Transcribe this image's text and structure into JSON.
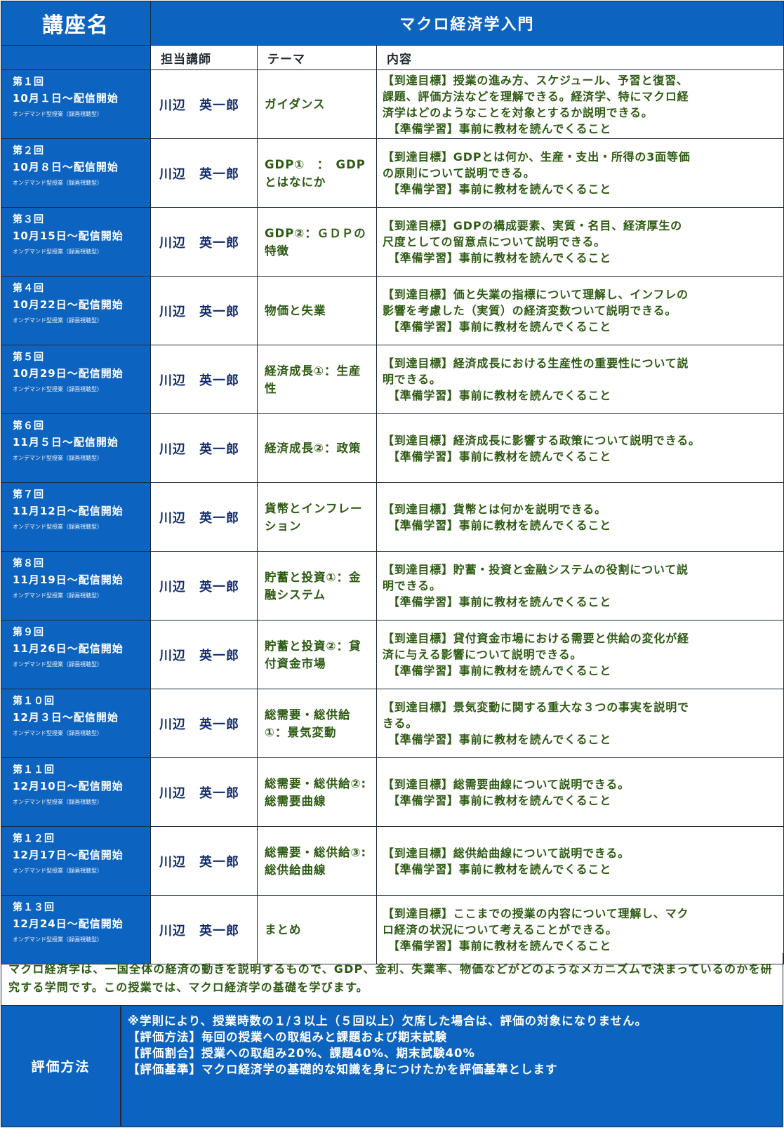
{
  "header": {
    "title_label": "講座名",
    "course_name": "マクロ経済学入門"
  },
  "columns": {
    "instructor": "担当講師",
    "theme": "テーマ",
    "content": "内容"
  },
  "sessions": [
    {
      "number": "第１回",
      "date": "10月１日～配信開始",
      "mode": "オンデマンド型授業（録画視聴型）",
      "instructor": "川辺　英一郎",
      "theme": "ガイダンス",
      "goal_lines": [
        "【到達目標】授業の進み方、スケジュール、予習と復習、",
        "課題、評価方法などを理解できる。経済学、特にマクロ経",
        "済学はどのようなことを対象とするか説明できる。"
      ],
      "prep": "【準備学習】事前に教材を読んでくること"
    },
    {
      "number": "第２回",
      "date": "10月８日～配信開始",
      "mode": "オンデマンド型授業（録画視聴型）",
      "instructor": "川辺　英一郎",
      "theme": "GDP①　：　GDPとはなにか",
      "goal_lines": [
        "【到達目標】GDPとは何か、生産・支出・所得の3面等価",
        "の原則について説明できる。"
      ],
      "prep": "【準備学習】事前に教材を読んでくること"
    },
    {
      "number": "第３回",
      "date": "10月15日～配信開始",
      "mode": "オンデマンド型授業（録画視聴型）",
      "instructor": "川辺　英一郎",
      "theme": "GDP②：ＧＤＰの特徴",
      "goal_lines": [
        "【到達目標】GDPの構成要素、実質・名目、経済厚生の",
        "尺度としての留意点について説明できる。"
      ],
      "prep": "【準備学習】事前に教材を読んでくること"
    },
    {
      "number": "第４回",
      "date": "10月22日～配信開始",
      "mode": "オンデマンド型授業（録画視聴型）",
      "instructor": "川辺　英一郎",
      "theme": "物価と失業",
      "goal_lines": [
        "【到達目標】価と失業の指標について理解し、インフレの",
        "影響を考慮した（実質）の経済変数ついて説明できる。"
      ],
      "prep": "【準備学習】事前に教材を読んでくること"
    },
    {
      "number": "第５回",
      "date": "10月29日～配信開始",
      "mode": "オンデマンド型授業（録画視聴型）",
      "instructor": "川辺　英一郎",
      "theme": "経済成長①：生産性",
      "goal_lines": [
        "【到達目標】経済成長における生産性の重要性について説",
        "明できる。"
      ],
      "prep": "【準備学習】事前に教材を読んでくること"
    },
    {
      "number": "第６回",
      "date": "11月５日～配信開始",
      "mode": "オンデマンド型授業（録画視聴型）",
      "instructor": "川辺　英一郎",
      "theme": "経済成長②：政策",
      "goal_lines": [
        "【到達目標】経済成長に影響する政策について説明できる。"
      ],
      "prep": "【準備学習】事前に教材を読んでくること"
    },
    {
      "number": "第７回",
      "date": "11月12日～配信開始",
      "mode": "オンデマンド型授業（録画視聴型）",
      "instructor": "川辺　英一郎",
      "theme": "貨幣とインフレーション",
      "goal_lines": [
        "【到達目標】貨幣とは何かを説明できる。"
      ],
      "prep": "【準備学習】事前に教材を読んでくること"
    },
    {
      "number": "第８回",
      "date": "11月19日～配信開始",
      "mode": "オンデマンド型授業（録画視聴型）",
      "instructor": "川辺　英一郎",
      "theme": "貯蓄と投資①：金融システム",
      "goal_lines": [
        "【到達目標】貯蓄・投資と金融システムの役割について説",
        "明できる。"
      ],
      "prep": "【準備学習】事前に教材を読んでくること"
    },
    {
      "number": "第９回",
      "date": "11月26日～配信開始",
      "mode": "オンデマンド型授業（録画視聴型）",
      "instructor": "川辺　英一郎",
      "theme": "貯蓄と投資②：貸付資金市場",
      "goal_lines": [
        "【到達目標】貸付資金市場における需要と供給の変化が経",
        "済に与える影響について説明できる。"
      ],
      "prep": "【準備学習】事前に教材を読んでくること"
    },
    {
      "number": "第１０回",
      "date": "12月３日～配信開始",
      "mode": "オンデマンド型授業（録画視聴型）",
      "instructor": "川辺　英一郎",
      "theme": "総需要・総供給①：景気変動",
      "goal_lines": [
        "【到達目標】景気変動に関する重大な３つの事実を説明で",
        "きる。"
      ],
      "prep": "【準備学習】事前に教材を読んでくること"
    },
    {
      "number": "第１１回",
      "date": "12月10日～配信開始",
      "mode": "オンデマンド型授業（録画視聴型）",
      "instructor": "川辺　英一郎",
      "theme": "総需要・総供給②:総需要曲線",
      "goal_lines": [
        "【到達目標】総需要曲線について説明できる。"
      ],
      "prep": "【準備学習】事前に教材を読んでくること"
    },
    {
      "number": "第１２回",
      "date": "12月17日～配信開始",
      "mode": "オンデマンド型授業（録画視聴型）",
      "instructor": "川辺　英一郎",
      "theme": "総需要・総供給③:総供給曲線",
      "goal_lines": [
        "【到達目標】総供給曲線について説明できる。"
      ],
      "prep": "【準備学習】事前に教材を読んでくること"
    },
    {
      "number": "第１３回",
      "date": "12月24日～配信開始",
      "mode": "オンデマンド型授業（録画視聴型）",
      "instructor": "川辺　英一郎",
      "theme": "まとめ",
      "goal_lines": [
        "【到達目標】ここまでの授業の内容について理解し、マク",
        "ロ経済の状況について考えることができる。"
      ],
      "prep": "【準備学習】事前に教材を読んでくること"
    }
  ],
  "summary": "マクロ経済学は、一国全体の経済の動きを説明するもので、GDP、金利、失業率、物価などがどのようなメカニズムで決まっているのかを研究する学問です。この授業では、マクロ経済学の基礎を学びます。",
  "evaluation": {
    "label": "評価方法",
    "lines": [
      "※学則により、授業時数の１/３以上（５回以上）欠席した場合は、評価の対象になりません。",
      "【評価方法】毎回の授業への取組みと課題および期末試験",
      "【評価割合】授業への取組み20%、課題40%、期末試験40%",
      "【評価基準】マクロ経済学の基礎的な知識を身につけたかを評価基準とします"
    ]
  }
}
